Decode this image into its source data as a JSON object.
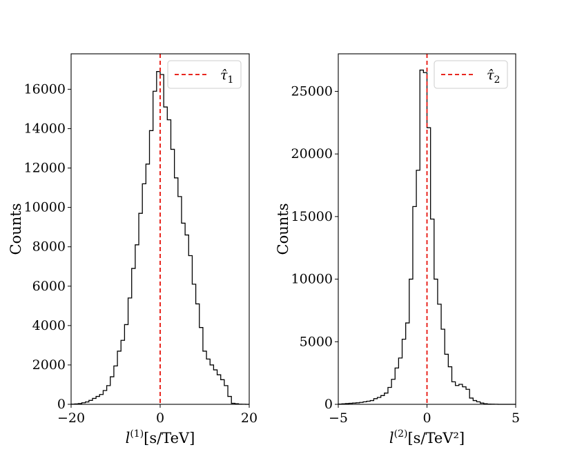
{
  "chart_data": [
    {
      "type": "histogram",
      "ylabel": "Counts",
      "xlabel": "l",
      "xlabel_sup": "(1)",
      "xlabel_unit": "[s/TeV]",
      "xlim": [
        -20,
        20
      ],
      "ylim": [
        0,
        17800
      ],
      "xticks": [
        -20,
        0,
        20
      ],
      "xtick_labels": [
        "−20",
        "0",
        "20"
      ],
      "yticks": [
        0,
        2000,
        4000,
        6000,
        8000,
        10000,
        12000,
        14000,
        16000
      ],
      "ytick_labels": [
        "0",
        "2000",
        "4000",
        "6000",
        "8000",
        "10000",
        "12000",
        "14000",
        "16000"
      ],
      "bin_edges_start": -20,
      "bin_width": 0.8,
      "counts": [
        10,
        20,
        40,
        80,
        120,
        200,
        300,
        400,
        500,
        700,
        950,
        1400,
        1950,
        2700,
        3250,
        4050,
        5400,
        6900,
        8100,
        9700,
        11200,
        12200,
        13900,
        15900,
        16900,
        16750,
        15100,
        14450,
        12950,
        11500,
        10550,
        9200,
        8600,
        7550,
        6100,
        5100,
        3900,
        2700,
        2300,
        2000,
        1750,
        1500,
        1250,
        950,
        400,
        50,
        30,
        10,
        5,
        0
      ],
      "legend": {
        "label": "τ̂",
        "sub": "1",
        "placement": "upper right"
      },
      "vline": {
        "x": 0,
        "color": "#e8261f",
        "style": "dashed"
      },
      "hist_color": "#000000"
    },
    {
      "type": "histogram",
      "ylabel": "Counts",
      "xlabel": "l",
      "xlabel_sup": "(2)",
      "xlabel_unit": "[s/TeV²]",
      "xlim": [
        -5,
        5
      ],
      "ylim": [
        0,
        28000
      ],
      "xticks": [
        -5,
        0,
        5
      ],
      "xtick_labels": [
        "−5",
        "0",
        "5"
      ],
      "yticks": [
        0,
        5000,
        10000,
        15000,
        20000,
        25000
      ],
      "ytick_labels": [
        "0",
        "5000",
        "10000",
        "15000",
        "20000",
        "25000"
      ],
      "bin_edges_start": -5,
      "bin_width": 0.2,
      "counts": [
        20,
        40,
        60,
        80,
        100,
        120,
        150,
        200,
        250,
        300,
        450,
        550,
        700,
        900,
        1350,
        2000,
        2900,
        3700,
        5200,
        6500,
        10000,
        15800,
        18700,
        26700,
        26500,
        22100,
        14800,
        10000,
        8000,
        6000,
        4000,
        3000,
        1800,
        1500,
        1600,
        1400,
        1200,
        500,
        300,
        200,
        100,
        50,
        20,
        10,
        5,
        0,
        0,
        0,
        0,
        0
      ],
      "legend": {
        "label": "τ̂",
        "sub": "2",
        "placement": "upper right"
      },
      "vline": {
        "x": 0,
        "color": "#e8261f",
        "style": "dashed"
      },
      "hist_color": "#000000"
    }
  ]
}
